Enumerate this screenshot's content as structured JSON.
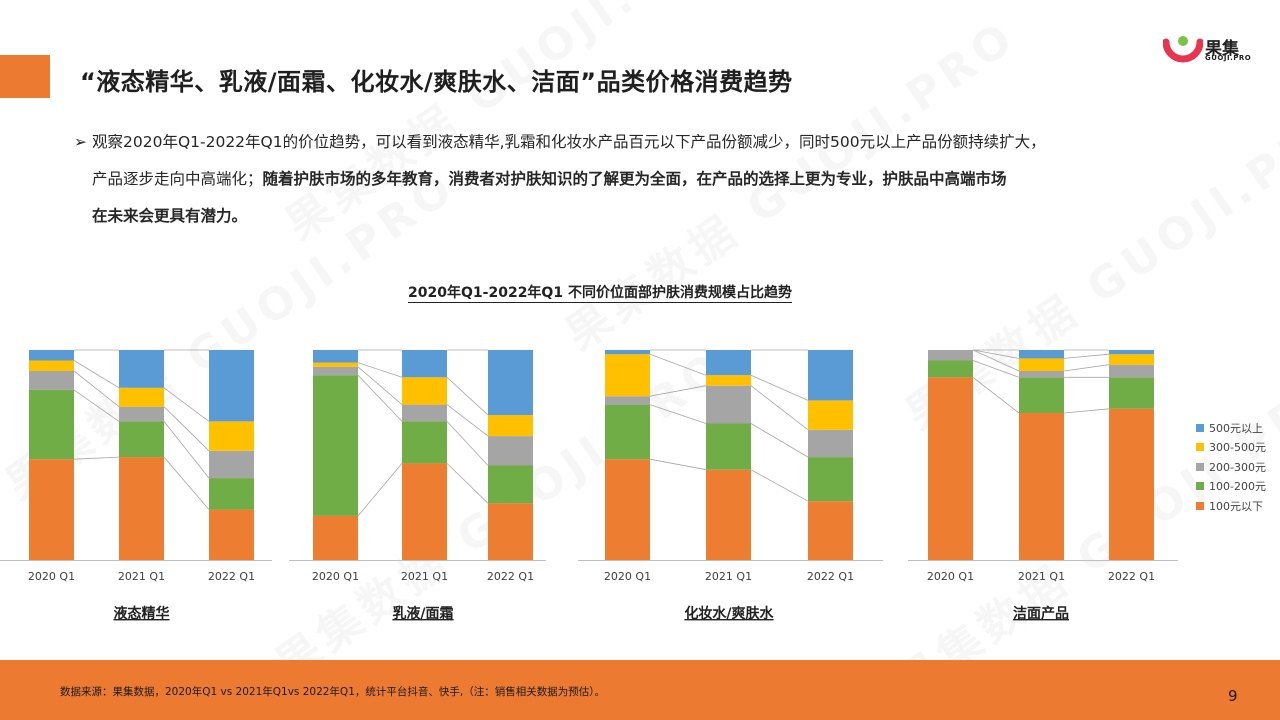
{
  "page_title": "“液态精华、乳液/面霜、化妆水/爽肤水、洁面”品类价格消费趋势",
  "logo": {
    "name": "果集",
    "sub": "GUOJI.PRO"
  },
  "summary": {
    "bullet": "➢",
    "line1": "观察2020年Q1-2022年Q1的价位趋势，可以看到液态精华,乳霜和化妆水产品百元以下产品份额减少，同时500元以上产品份额持续扩大，",
    "line2_plain": "产品逐步走向中高端化；",
    "line2_bold": "随着护肤市场的多年教育，消费者对护肤知识的了解更为全面，在产品的选择上更为专业，护肤品中高端市场",
    "line3_bold": "在未来会更具有潜力。"
  },
  "chart_data": {
    "type": "bar",
    "stacked": true,
    "percent": true,
    "title": "2020年Q1-2022年Q1 不同价位面部护肤消费规模占比趋势",
    "categories": [
      "2020 Q1",
      "2021 Q1",
      "2022 Q1"
    ],
    "series_names": [
      "100元以下",
      "100-200元",
      "200-300元",
      "300-500元",
      "500元以上"
    ],
    "colors": [
      "#ed7d31",
      "#70ad47",
      "#a5a5a5",
      "#ffc000",
      "#5b9bd5"
    ],
    "legend_position": "right",
    "groups": [
      {
        "label": "液态精华",
        "values": [
          [
            48,
            33,
            9,
            5,
            5
          ],
          [
            49,
            17,
            7,
            9,
            18
          ],
          [
            24,
            15,
            13,
            14,
            34
          ]
        ]
      },
      {
        "label": "乳液/面霜",
        "values": [
          [
            21,
            67,
            4,
            2,
            6
          ],
          [
            46,
            20,
            8,
            13,
            13
          ],
          [
            27,
            18,
            14,
            10,
            31
          ]
        ]
      },
      {
        "label": "化妆水/爽肤水",
        "values": [
          [
            48,
            26,
            4,
            20,
            2
          ],
          [
            43,
            22,
            18,
            5,
            12
          ],
          [
            28,
            21,
            13,
            14,
            24
          ]
        ]
      },
      {
        "label": "洁面产品",
        "values": [
          [
            87,
            8,
            5,
            0,
            0
          ],
          [
            70,
            17,
            3,
            6,
            4
          ],
          [
            72,
            15,
            6,
            5,
            2
          ]
        ]
      }
    ]
  },
  "footer": {
    "source": "数据来源：果集数据，2020年Q1 vs 2021年Q1vs 2022年Q1，统计平台抖音、快手,（注：销售相关数据为预估）。",
    "page_number": "9"
  },
  "watermark": "果集数据 GUOJI.PRO"
}
